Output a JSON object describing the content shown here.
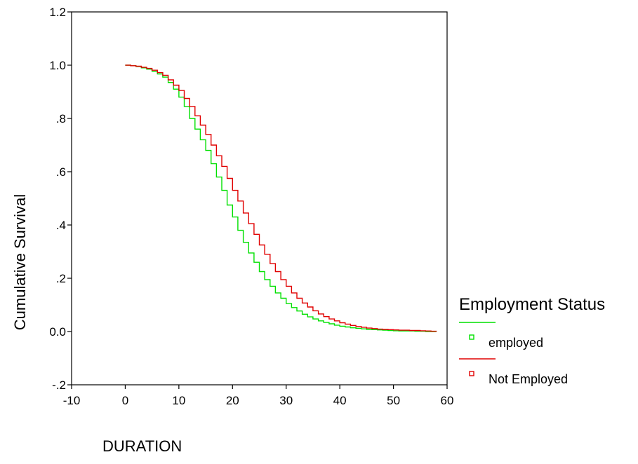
{
  "chart_data": {
    "type": "line",
    "title": "",
    "xlabel": "DURATION",
    "ylabel": "Cumulative Survival",
    "xlim": [
      -10,
      60
    ],
    "ylim": [
      -0.2,
      1.2
    ],
    "x_ticks": [
      -10,
      0,
      10,
      20,
      30,
      40,
      50,
      60
    ],
    "x_tick_labels": [
      "-10",
      "0",
      "10",
      "20",
      "30",
      "40",
      "50",
      "60"
    ],
    "y_ticks": [
      -0.2,
      0.0,
      0.2,
      0.4,
      0.6,
      0.8,
      1.0,
      1.2
    ],
    "y_tick_labels": [
      "-.2",
      "0.0",
      ".2",
      ".4",
      ".6",
      ".8",
      "1.0",
      "1.2"
    ],
    "grid": false,
    "step": true,
    "legend": {
      "title": "Employment Status",
      "placement": "right"
    },
    "series": [
      {
        "name": "employed",
        "color": "#00e000",
        "x": [
          0,
          1,
          2,
          3,
          4,
          5,
          6,
          7,
          8,
          9,
          10,
          11,
          12,
          13,
          14,
          15,
          16,
          17,
          18,
          19,
          20,
          21,
          22,
          23,
          24,
          25,
          26,
          27,
          28,
          29,
          30,
          31,
          32,
          33,
          34,
          35,
          36,
          37,
          38,
          39,
          40,
          41,
          42,
          43,
          44,
          45,
          46,
          47,
          48,
          49,
          50,
          51,
          52,
          53,
          54,
          55,
          56,
          57,
          58
        ],
        "y": [
          1.0,
          0.998,
          0.995,
          0.99,
          0.985,
          0.977,
          0.967,
          0.955,
          0.935,
          0.91,
          0.88,
          0.845,
          0.8,
          0.76,
          0.72,
          0.68,
          0.63,
          0.58,
          0.53,
          0.475,
          0.43,
          0.38,
          0.335,
          0.295,
          0.26,
          0.225,
          0.195,
          0.17,
          0.145,
          0.125,
          0.105,
          0.09,
          0.077,
          0.065,
          0.055,
          0.047,
          0.04,
          0.034,
          0.029,
          0.024,
          0.02,
          0.017,
          0.014,
          0.012,
          0.01,
          0.008,
          0.007,
          0.006,
          0.005,
          0.004,
          0.003,
          0.002,
          0.002,
          0.002,
          0.001,
          0.001,
          0.0,
          0.0,
          0.0
        ]
      },
      {
        "name": "Not Employed",
        "color": "#e00000",
        "x": [
          0,
          1,
          2,
          3,
          4,
          5,
          6,
          7,
          8,
          9,
          10,
          11,
          12,
          13,
          14,
          15,
          16,
          17,
          18,
          19,
          20,
          21,
          22,
          23,
          24,
          25,
          26,
          27,
          28,
          29,
          30,
          31,
          32,
          33,
          34,
          35,
          36,
          37,
          38,
          39,
          40,
          41,
          42,
          43,
          44,
          45,
          46,
          47,
          48,
          49,
          50,
          51,
          52,
          53,
          54,
          55,
          56,
          57,
          58
        ],
        "y": [
          1.0,
          0.998,
          0.996,
          0.992,
          0.988,
          0.981,
          0.972,
          0.962,
          0.945,
          0.925,
          0.905,
          0.875,
          0.845,
          0.81,
          0.775,
          0.74,
          0.7,
          0.66,
          0.62,
          0.575,
          0.53,
          0.49,
          0.445,
          0.405,
          0.365,
          0.325,
          0.29,
          0.255,
          0.225,
          0.195,
          0.17,
          0.145,
          0.125,
          0.107,
          0.092,
          0.078,
          0.066,
          0.056,
          0.047,
          0.04,
          0.033,
          0.028,
          0.023,
          0.019,
          0.016,
          0.013,
          0.011,
          0.009,
          0.008,
          0.007,
          0.006,
          0.005,
          0.005,
          0.004,
          0.004,
          0.003,
          0.002,
          0.001,
          0.0
        ]
      }
    ]
  }
}
